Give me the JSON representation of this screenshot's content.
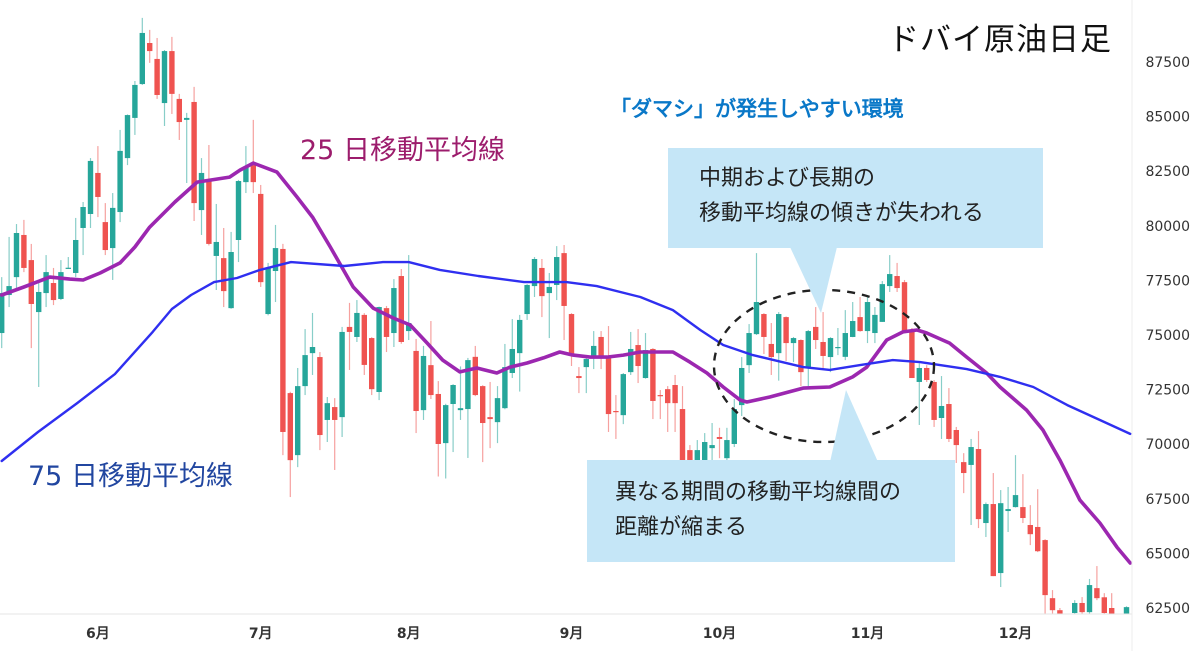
{
  "title": "ドバイ原油日足",
  "headline": "「ダマシ」が発生しやすい環境",
  "labels": {
    "ma25": "25 日移動平均線",
    "ma75": "75 日移動平均線"
  },
  "callouts": [
    {
      "lines": [
        "中期および長期の",
        "移動平均線の傾きが失われる"
      ]
    },
    {
      "lines": [
        "異なる期間の移動平均線間の",
        "距離が縮まる"
      ]
    }
  ],
  "chart_data": {
    "type": "candlestick",
    "title": "ドバイ原油日足",
    "colors": {
      "up": "#26a69a",
      "down": "#ef5350",
      "ma25": "#9c27b0",
      "ma75": "#2f2ff0",
      "callout": "#c5e6f7",
      "headline": "#0a78c8"
    },
    "ylim": [
      62500,
      87500
    ],
    "y_ticks": [
      62500,
      65000,
      67500,
      70000,
      72500,
      75000,
      77500,
      80000,
      82500,
      85000,
      87500
    ],
    "y_axis_position": "right",
    "grid": false,
    "x_ticks": [
      {
        "day": 13,
        "label": "6月"
      },
      {
        "day": 35,
        "label": "7月"
      },
      {
        "day": 55,
        "label": "8月"
      },
      {
        "day": 77,
        "label": "9月"
      },
      {
        "day": 97,
        "label": "10月"
      },
      {
        "day": 117,
        "label": "11月"
      },
      {
        "day": 137,
        "label": "12月"
      }
    ],
    "ohlc_fields": [
      "open",
      "high",
      "low",
      "close"
    ],
    "candles": [
      [
        75090,
        77650,
        74400,
        76920
      ],
      [
        76830,
        79490,
        76280,
        77240
      ],
      [
        77650,
        80080,
        77060,
        79670
      ],
      [
        79580,
        80270,
        77880,
        78070
      ],
      [
        78430,
        79170,
        74400,
        76420
      ],
      [
        76050,
        77520,
        72620,
        76970
      ],
      [
        76920,
        78660,
        76280,
        77880
      ],
      [
        77380,
        78070,
        76370,
        76600
      ],
      [
        76650,
        78430,
        76600,
        77880
      ],
      [
        78050,
        78570,
        78040,
        78080
      ],
      [
        77840,
        80360,
        77650,
        79350
      ],
      [
        79900,
        81090,
        78660,
        80860
      ],
      [
        80540,
        83100,
        79900,
        82970
      ],
      [
        82420,
        83650,
        80400,
        81320
      ],
      [
        80170,
        81040,
        78660,
        78890
      ],
      [
        78980,
        81500,
        77520,
        80820
      ],
      [
        80630,
        84390,
        80170,
        83430
      ],
      [
        83100,
        85100,
        82780,
        85070
      ],
      [
        84940,
        86630,
        84160,
        86450
      ],
      [
        86490,
        89520,
        86450,
        88830
      ],
      [
        88370,
        88970,
        87460,
        88000
      ],
      [
        87640,
        88600,
        85810,
        85990
      ],
      [
        85620,
        88050,
        84570,
        88000
      ],
      [
        88000,
        88650,
        85120,
        86040
      ],
      [
        85810,
        86040,
        83930,
        84750
      ],
      [
        84850,
        85170,
        81960,
        84940
      ],
      [
        85670,
        86360,
        80220,
        81040
      ],
      [
        80720,
        83100,
        79580,
        82420
      ],
      [
        82100,
        83700,
        79100,
        79170
      ],
      [
        78620,
        81000,
        77060,
        79260
      ],
      [
        78520,
        79900,
        76280,
        77010
      ],
      [
        76230,
        79720,
        76200,
        78800
      ],
      [
        79350,
        82100,
        78340,
        82050
      ],
      [
        82000,
        83650,
        81500,
        82690
      ],
      [
        82780,
        84850,
        81500,
        82000
      ],
      [
        81460,
        81870,
        77200,
        77420
      ],
      [
        75960,
        78300,
        75900,
        78070
      ],
      [
        77930,
        80040,
        76510,
        78980
      ],
      [
        78940,
        79170,
        69500,
        70560
      ],
      [
        72340,
        72400,
        67580,
        69270
      ],
      [
        69500,
        73490,
        68950,
        72660
      ],
      [
        72660,
        75270,
        72250,
        74080
      ],
      [
        74170,
        76010,
        73170,
        74450
      ],
      [
        73990,
        74220,
        69730,
        70420
      ],
      [
        71110,
        72160,
        70100,
        71880
      ],
      [
        71700,
        72110,
        68820,
        71110
      ],
      [
        71240,
        75370,
        70330,
        75140
      ],
      [
        75370,
        76470,
        73400,
        75140
      ],
      [
        74910,
        76600,
        74680,
        76010
      ],
      [
        75920,
        76000,
        73170,
        73630
      ],
      [
        74860,
        74900,
        72250,
        72520
      ],
      [
        72390,
        76300,
        72020,
        76280
      ],
      [
        76230,
        76330,
        74220,
        74910
      ],
      [
        75090,
        77560,
        74450,
        77150
      ],
      [
        77700,
        78020,
        74600,
        74680
      ],
      [
        75180,
        78660,
        74770,
        75550
      ],
      [
        74270,
        74820,
        70510,
        71520
      ],
      [
        71560,
        74500,
        71110,
        74040
      ],
      [
        73620,
        75640,
        72070,
        72250
      ],
      [
        72300,
        72890,
        68520,
        70010
      ],
      [
        70050,
        71850,
        68430,
        71790
      ],
      [
        71840,
        72750,
        69640,
        72710
      ],
      [
        71560,
        73560,
        71110,
        71650
      ],
      [
        71610,
        73950,
        69370,
        73850
      ],
      [
        74000,
        74500,
        72200,
        72250
      ],
      [
        72660,
        72700,
        69180,
        70970
      ],
      [
        71240,
        72850,
        69820,
        71150
      ],
      [
        71010,
        72660,
        70050,
        72110
      ],
      [
        71650,
        74590,
        71600,
        73530
      ],
      [
        73260,
        75730,
        73030,
        74360
      ],
      [
        74170,
        75920,
        72410,
        75690
      ],
      [
        75960,
        77330,
        75690,
        77290
      ],
      [
        77240,
        78570,
        76740,
        78480
      ],
      [
        78070,
        78480,
        75820,
        76780
      ],
      [
        76920,
        77840,
        74860,
        77200
      ],
      [
        77290,
        79070,
        76600,
        78570
      ],
      [
        78750,
        79120,
        74770,
        76330
      ],
      [
        75960,
        76000,
        73580,
        74040
      ],
      [
        73120,
        73530,
        72340,
        73030
      ],
      [
        73530,
        73950,
        72340,
        73900
      ],
      [
        73990,
        75180,
        73440,
        74500
      ],
      [
        74910,
        75180,
        73440,
        74000
      ],
      [
        74000,
        75410,
        70560,
        71380
      ],
      [
        71520,
        72250,
        70240,
        71470
      ],
      [
        71330,
        73260,
        70920,
        73210
      ],
      [
        73300,
        75140,
        73170,
        74360
      ],
      [
        74540,
        75270,
        72800,
        73580
      ],
      [
        73030,
        75090,
        73000,
        74310
      ],
      [
        74360,
        74400,
        71150,
        71980
      ],
      [
        72250,
        72480,
        71150,
        72200
      ],
      [
        72520,
        72660,
        70560,
        71880
      ],
      [
        72710,
        73170,
        70560,
        71880
      ],
      [
        71610,
        72660,
        68820,
        69050
      ],
      [
        69730,
        69960,
        68360,
        68820
      ],
      [
        69050,
        70190,
        68590,
        69730
      ],
      [
        69270,
        70510,
        69050,
        70100
      ],
      [
        69820,
        70970,
        69270,
        69960
      ],
      [
        70330,
        70750,
        69360,
        70240
      ],
      [
        69360,
        70750,
        69270,
        70190
      ],
      [
        70010,
        72070,
        69870,
        71610
      ],
      [
        71790,
        73990,
        71290,
        73490
      ],
      [
        73620,
        75500,
        73260,
        75090
      ],
      [
        75040,
        78750,
        75000,
        76510
      ],
      [
        75960,
        76000,
        74130,
        74910
      ],
      [
        74590,
        75550,
        73170,
        73990
      ],
      [
        74170,
        76050,
        72910,
        75960
      ],
      [
        75820,
        75850,
        73810,
        74630
      ],
      [
        74630,
        74910,
        73760,
        74860
      ],
      [
        74770,
        74800,
        72660,
        73300
      ],
      [
        73490,
        75230,
        72660,
        75180
      ],
      [
        75370,
        76280,
        74360,
        74770
      ],
      [
        74680,
        76050,
        73490,
        74040
      ],
      [
        73990,
        74900,
        73300,
        74860
      ],
      [
        74400,
        75320,
        74080,
        74450
      ],
      [
        74000,
        76140,
        73850,
        75090
      ],
      [
        74910,
        76510,
        74900,
        75640
      ],
      [
        75820,
        76740,
        75150,
        75180
      ],
      [
        75180,
        76740,
        74630,
        76510
      ],
      [
        75090,
        76280,
        74630,
        75920
      ],
      [
        75600,
        77470,
        75600,
        77330
      ],
      [
        77240,
        78660,
        76970,
        77790
      ],
      [
        77700,
        78300,
        76970,
        77150
      ],
      [
        77420,
        77520,
        75180,
        75180
      ],
      [
        75230,
        75320,
        73030,
        73030
      ],
      [
        72850,
        73710,
        70880,
        73490
      ],
      [
        73490,
        73620,
        72850,
        72940
      ],
      [
        72850,
        72940,
        70790,
        71110
      ],
      [
        71200,
        73120,
        70240,
        71750
      ],
      [
        71840,
        72570,
        70100,
        70240
      ],
      [
        70650,
        70790,
        69140,
        69960
      ],
      [
        69180,
        69590,
        67760,
        68680
      ],
      [
        69050,
        70240,
        66300,
        69870
      ],
      [
        69780,
        70600,
        66160,
        66570
      ],
      [
        66390,
        67330,
        65750,
        67260
      ],
      [
        67260,
        68680,
        63960,
        63960
      ],
      [
        64100,
        67900,
        63460,
        67300
      ],
      [
        66940,
        68040,
        65980,
        67030
      ],
      [
        67120,
        69500,
        67100,
        67670
      ],
      [
        67120,
        68630,
        66390,
        66620
      ],
      [
        66300,
        67210,
        65380,
        65880
      ],
      [
        66210,
        67940,
        65060,
        65100
      ],
      [
        65610,
        65650,
        62220,
        63090
      ],
      [
        62950,
        63320,
        62150,
        62400
      ],
      [
        62400,
        62500,
        61200,
        61500
      ],
      [
        61500,
        62200,
        60900,
        61800
      ],
      [
        62270,
        62860,
        62150,
        62730
      ],
      [
        62730,
        63000,
        62200,
        62310
      ],
      [
        62310,
        63830,
        62200,
        63550
      ],
      [
        63410,
        64420,
        62860,
        62950
      ],
      [
        62990,
        63180,
        62150,
        62270
      ],
      [
        62500,
        63180,
        61800,
        62000
      ],
      [
        61800,
        62200,
        61300,
        61600
      ],
      [
        62200,
        62580,
        62150,
        62540
      ]
    ],
    "series": [
      {
        "name": "25 日移動平均線",
        "points": [
          [
            0,
            76830
          ],
          [
            3,
            77200
          ],
          [
            6.5,
            77650
          ],
          [
            9.2,
            77560
          ],
          [
            11,
            77520
          ],
          [
            13.3,
            77840
          ],
          [
            16,
            78300
          ],
          [
            18,
            79030
          ],
          [
            20,
            79940
          ],
          [
            23.4,
            81090
          ],
          [
            26.4,
            82000
          ],
          [
            30.8,
            82230
          ],
          [
            32.2,
            82550
          ],
          [
            34,
            82870
          ],
          [
            37.2,
            82460
          ],
          [
            39.9,
            81320
          ],
          [
            42,
            80400
          ],
          [
            44.4,
            79030
          ],
          [
            47.5,
            77200
          ],
          [
            50.2,
            76230
          ],
          [
            52.9,
            75780
          ],
          [
            55.2,
            75460
          ],
          [
            57.5,
            74630
          ],
          [
            59.6,
            73850
          ],
          [
            61.9,
            73310
          ],
          [
            64.2,
            73490
          ],
          [
            66.9,
            73260
          ],
          [
            68.7,
            73530
          ],
          [
            71,
            73720
          ],
          [
            73.2,
            73950
          ],
          [
            75.4,
            74220
          ],
          [
            77.2,
            74080
          ],
          [
            79.5,
            73990
          ],
          [
            81.8,
            73990
          ],
          [
            84,
            74080
          ],
          [
            86.3,
            74220
          ],
          [
            90.7,
            74220
          ],
          [
            93,
            73760
          ],
          [
            95.3,
            73260
          ],
          [
            97.5,
            72620
          ],
          [
            99.8,
            72020
          ],
          [
            100.7,
            71930
          ],
          [
            103.8,
            72160
          ],
          [
            108.3,
            72570
          ],
          [
            111.9,
            72620
          ],
          [
            115,
            73080
          ],
          [
            116.9,
            73530
          ],
          [
            119.6,
            74770
          ],
          [
            121.8,
            75140
          ],
          [
            123.7,
            75230
          ],
          [
            125,
            75090
          ],
          [
            128.1,
            74630
          ],
          [
            130.4,
            73990
          ],
          [
            133.1,
            73260
          ],
          [
            134.9,
            72620
          ],
          [
            138.5,
            71560
          ],
          [
            140.7,
            70650
          ],
          [
            143,
            69270
          ],
          [
            145.7,
            67440
          ],
          [
            148.4,
            66390
          ],
          [
            150.7,
            65290
          ],
          [
            152.5,
            64560
          ]
        ]
      },
      {
        "name": "75 日移動平均線",
        "points": [
          [
            0,
            69230
          ],
          [
            4.9,
            70560
          ],
          [
            10.2,
            71880
          ],
          [
            15.3,
            73210
          ],
          [
            20.4,
            75140
          ],
          [
            23,
            76190
          ],
          [
            25.6,
            76830
          ],
          [
            28.7,
            77420
          ],
          [
            31.8,
            77610
          ],
          [
            34.9,
            77980
          ],
          [
            39.1,
            78340
          ],
          [
            46.3,
            78160
          ],
          [
            51.5,
            78340
          ],
          [
            55,
            78340
          ],
          [
            59.2,
            77980
          ],
          [
            64.4,
            77700
          ],
          [
            70.6,
            77420
          ],
          [
            76.3,
            77420
          ],
          [
            80.4,
            77240
          ],
          [
            86.3,
            76740
          ],
          [
            90.7,
            76140
          ],
          [
            94.4,
            75230
          ],
          [
            97.5,
            74540
          ],
          [
            101.5,
            74080
          ],
          [
            108.3,
            73530
          ],
          [
            111.9,
            73400
          ],
          [
            116,
            73620
          ],
          [
            120.4,
            73850
          ],
          [
            124.1,
            73760
          ],
          [
            130.4,
            73440
          ],
          [
            134.9,
            73080
          ],
          [
            139.4,
            72620
          ],
          [
            144,
            71790
          ],
          [
            148.4,
            71110
          ],
          [
            152.5,
            70470
          ]
        ]
      }
    ]
  }
}
